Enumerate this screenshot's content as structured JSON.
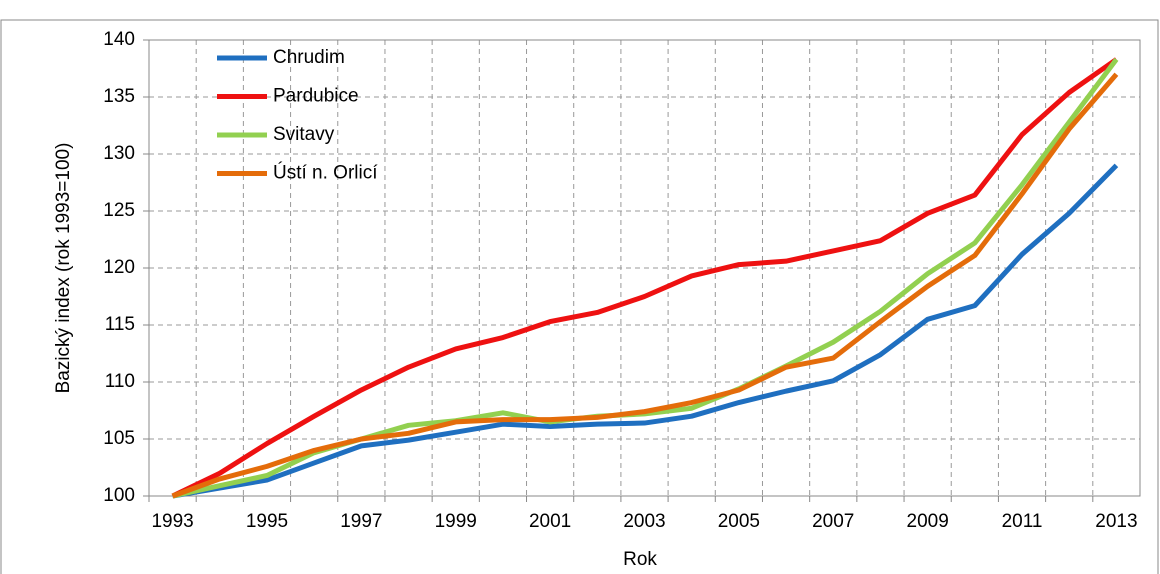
{
  "chart_data": {
    "type": "line",
    "ylabel": "Bazický index (rok 1993=100)",
    "xlabel": "Rok",
    "categories": [
      "1993",
      null,
      "1995",
      null,
      "1997",
      null,
      "1999",
      null,
      "2001",
      null,
      "2003",
      null,
      "2005",
      null,
      "2007",
      null,
      "2009",
      null,
      "2011",
      null,
      "2013"
    ],
    "series": [
      {
        "name": "Chrudim",
        "color": "#1f6fc0",
        "values": [
          100,
          100.7,
          101.4,
          102.9,
          104.4,
          104.9,
          105.6,
          106.3,
          106.1,
          106.3,
          106.4,
          107.0,
          108.2,
          109.2,
          110.1,
          112.4,
          115.5,
          116.7,
          121.2,
          124.8,
          129.0
        ]
      },
      {
        "name": "Pardubice",
        "color": "#ee1111",
        "values": [
          100,
          102.0,
          104.6,
          107.0,
          109.3,
          111.3,
          112.9,
          113.9,
          115.3,
          116.1,
          117.5,
          119.3,
          120.3,
          120.6,
          121.5,
          122.4,
          124.8,
          126.4,
          131.7,
          135.4,
          138.3
        ]
      },
      {
        "name": "Svitavy",
        "color": "#92d050",
        "values": [
          100,
          100.9,
          101.8,
          103.8,
          105.0,
          106.2,
          106.6,
          107.3,
          106.5,
          107.0,
          107.2,
          107.7,
          109.4,
          111.4,
          113.5,
          116.2,
          119.5,
          122.2,
          127.3,
          132.8,
          138.3
        ]
      },
      {
        "name": "Ústí n. Orlicí",
        "color": "#e46c0a",
        "values": [
          100,
          101.5,
          102.6,
          104.0,
          105.0,
          105.5,
          106.5,
          106.7,
          106.7,
          106.9,
          107.4,
          108.2,
          109.3,
          111.3,
          112.1,
          115.3,
          118.4,
          121.1,
          126.5,
          132.2,
          137.0
        ]
      }
    ],
    "ylim": [
      100,
      140
    ],
    "yticks": [
      100,
      105,
      110,
      115,
      120,
      125,
      130,
      135,
      140
    ],
    "grid": true,
    "legend": "upper left"
  }
}
